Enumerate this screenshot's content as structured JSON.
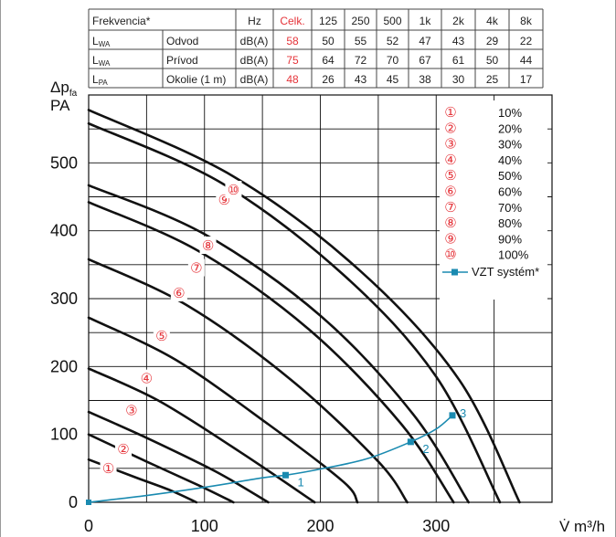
{
  "noise_table": {
    "header": [
      "Frekvencia*",
      "Hz",
      "Celk.",
      "125",
      "250",
      "500",
      "1k",
      "2k",
      "4k",
      "8k"
    ],
    "rows": [
      {
        "label": "L",
        "sub": "WA",
        "name": "Odvod",
        "unit": "dB(A)",
        "total": "58",
        "values": [
          "50",
          "55",
          "52",
          "47",
          "43",
          "29",
          "22"
        ]
      },
      {
        "label": "L",
        "sub": "WA",
        "name": "Prívod",
        "unit": "dB(A)",
        "total": "75",
        "values": [
          "64",
          "72",
          "70",
          "67",
          "61",
          "50",
          "44"
        ]
      },
      {
        "label": "L",
        "sub": "PA",
        "name": "Okolie (1 m)",
        "unit": "dB(A)",
        "total": "48",
        "values": [
          "26",
          "43",
          "45",
          "38",
          "30",
          "25",
          "17"
        ]
      }
    ]
  },
  "colors": {
    "curve": "#111111",
    "marker": "#e5343a",
    "system": "#1a8ab0",
    "grid": "#111111"
  },
  "chart_data": {
    "type": "line",
    "ylabel_main": "Δp",
    "ylabel_sub": "fa",
    "ylabel_unit": "PA",
    "xlabel": "V̇ m³/h",
    "xlim": [
      0,
      400
    ],
    "ylim": [
      0,
      600
    ],
    "xticks": [
      0,
      100,
      200,
      300
    ],
    "yticks": [
      0,
      100,
      200,
      300,
      400,
      500
    ],
    "grid": true,
    "legend_position": "top-right",
    "series": [
      {
        "name": "10%",
        "marker": "①",
        "points": [
          [
            0,
            63
          ],
          [
            40,
            37
          ],
          [
            70,
            18
          ],
          [
            93,
            0
          ]
        ]
      },
      {
        "name": "20%",
        "marker": "②",
        "points": [
          [
            0,
            100
          ],
          [
            50,
            60
          ],
          [
            95,
            25
          ],
          [
            125,
            0
          ]
        ]
      },
      {
        "name": "30%",
        "marker": "③",
        "points": [
          [
            0,
            133
          ],
          [
            50,
            95
          ],
          [
            110,
            45
          ],
          [
            155,
            0
          ]
        ]
      },
      {
        "name": "40%",
        "marker": "④",
        "points": [
          [
            0,
            197
          ],
          [
            60,
            150
          ],
          [
            130,
            75
          ],
          [
            195,
            0
          ]
        ]
      },
      {
        "name": "50%",
        "marker": "⑤",
        "points": [
          [
            0,
            272
          ],
          [
            75,
            210
          ],
          [
            155,
            115
          ],
          [
            220,
            30
          ],
          [
            232,
            0
          ]
        ]
      },
      {
        "name": "60%",
        "marker": "⑥",
        "points": [
          [
            0,
            358
          ],
          [
            85,
            290
          ],
          [
            175,
            180
          ],
          [
            250,
            60
          ],
          [
            275,
            0
          ]
        ]
      },
      {
        "name": "70%",
        "marker": "⑦",
        "points": [
          [
            0,
            442
          ],
          [
            95,
            370
          ],
          [
            190,
            255
          ],
          [
            270,
            115
          ],
          [
            315,
            0
          ]
        ]
      },
      {
        "name": "80%",
        "marker": "⑧",
        "points": [
          [
            0,
            467
          ],
          [
            100,
            395
          ],
          [
            200,
            275
          ],
          [
            280,
            130
          ],
          [
            328,
            0
          ]
        ]
      },
      {
        "name": "90%",
        "marker": "⑨",
        "points": [
          [
            0,
            558
          ],
          [
            115,
            470
          ],
          [
            220,
            335
          ],
          [
            300,
            185
          ],
          [
            355,
            0
          ]
        ]
      },
      {
        "name": "100%",
        "marker": "⑩",
        "points": [
          [
            0,
            578
          ],
          [
            125,
            480
          ],
          [
            235,
            340
          ],
          [
            320,
            180
          ],
          [
            372,
            0
          ]
        ]
      }
    ],
    "marker_positions": [
      [
        17,
        50
      ],
      [
        30,
        78
      ],
      [
        37,
        135
      ],
      [
        50,
        182
      ],
      [
        63,
        245
      ],
      [
        78,
        308
      ],
      [
        93,
        345
      ],
      [
        103,
        378
      ],
      [
        117,
        445
      ],
      [
        125,
        460
      ]
    ],
    "system_curve": {
      "name": "VZT systém*",
      "points": [
        [
          0,
          0
        ],
        [
          50,
          10
        ],
        [
          100,
          22
        ],
        [
          150,
          36
        ],
        [
          170,
          40
        ],
        [
          200,
          49
        ],
        [
          240,
          64
        ],
        [
          278,
          89
        ],
        [
          300,
          108
        ],
        [
          314,
          128
        ]
      ],
      "operating_points": [
        {
          "label": "1",
          "x": 170,
          "y": 40
        },
        {
          "label": "2",
          "x": 278,
          "y": 89
        },
        {
          "label": "3",
          "x": 314,
          "y": 128
        }
      ]
    }
  }
}
